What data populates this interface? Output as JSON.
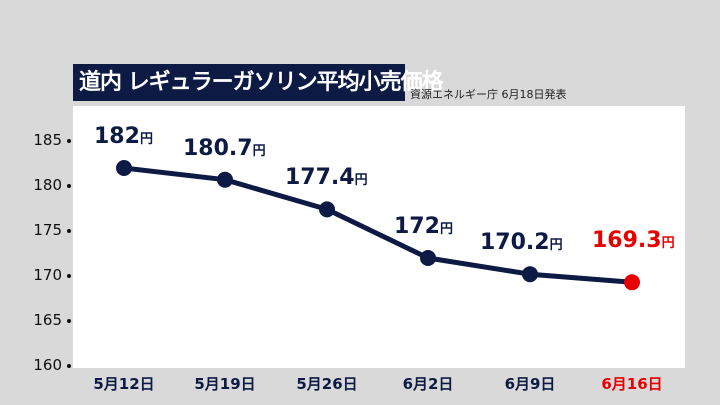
{
  "header": {
    "title": "道内 レギュラーガソリン平均小売価格",
    "source": "資源エネルギー庁 6月18日発表"
  },
  "colors": {
    "line": "#0c1a44",
    "highlight": "#e60000",
    "background": "#d9d9d9",
    "title_bg": "#0c1a44"
  },
  "chart_data": {
    "type": "line",
    "title": "道内 レギュラーガソリン平均小売価格",
    "subtitle": "資源エネルギー庁 6月18日発表",
    "categories": [
      "5月12日",
      "5月19日",
      "5月26日",
      "6月2日",
      "6月9日",
      "6月16日"
    ],
    "values": [
      182,
      180.7,
      177.4,
      172,
      170.2,
      169.3
    ],
    "data_labels": [
      "182",
      "180.7",
      "177.4",
      "172",
      "170.2",
      "169.3"
    ],
    "unit": "円",
    "ylim": [
      160,
      185
    ],
    "yticks": [
      "185",
      "180",
      "175",
      "170",
      "165",
      "160"
    ],
    "xlabel": "",
    "ylabel": "",
    "highlight_index": 5,
    "grid": false,
    "legend": "none"
  }
}
